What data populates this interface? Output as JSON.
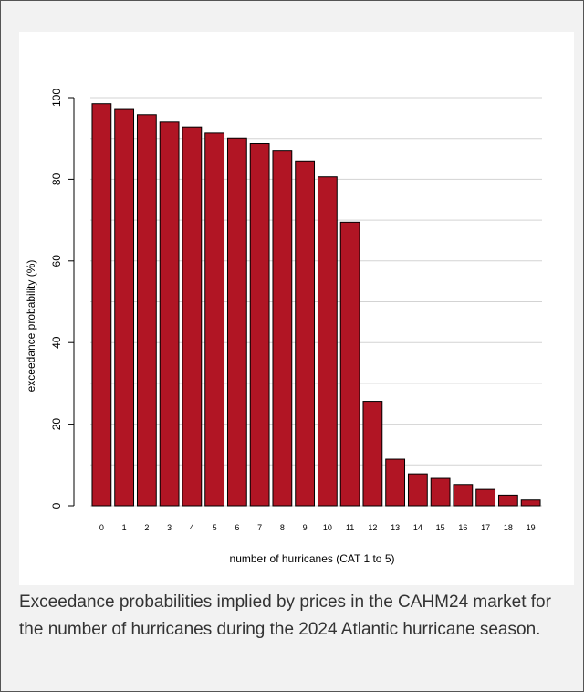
{
  "caption": "Exceedance probabilities implied by prices in the CAHM24 market for the number of hurricanes during the 2024 Atlantic hurricane season.",
  "chart_data": {
    "type": "bar",
    "title": "",
    "xlabel": "number of hurricanes (CAT 1 to 5)",
    "ylabel": "exceedance probability (%)",
    "categories": [
      "0",
      "1",
      "2",
      "3",
      "4",
      "5",
      "6",
      "7",
      "8",
      "9",
      "10",
      "11",
      "12",
      "13",
      "14",
      "15",
      "16",
      "17",
      "18",
      "19"
    ],
    "values": [
      98.5,
      97.3,
      95.8,
      94.0,
      92.8,
      91.3,
      90.1,
      88.7,
      87.1,
      84.5,
      80.6,
      69.5,
      25.6,
      11.4,
      7.8,
      6.7,
      5.2,
      4.0,
      2.6,
      1.4
    ],
    "ylim": [
      0,
      100
    ],
    "yticks": [
      0,
      20,
      40,
      60,
      80,
      100
    ],
    "grid": true,
    "bar_color": "#b11524",
    "bar_edge_color": "#000000",
    "grid_color": "#d3d3d3"
  }
}
